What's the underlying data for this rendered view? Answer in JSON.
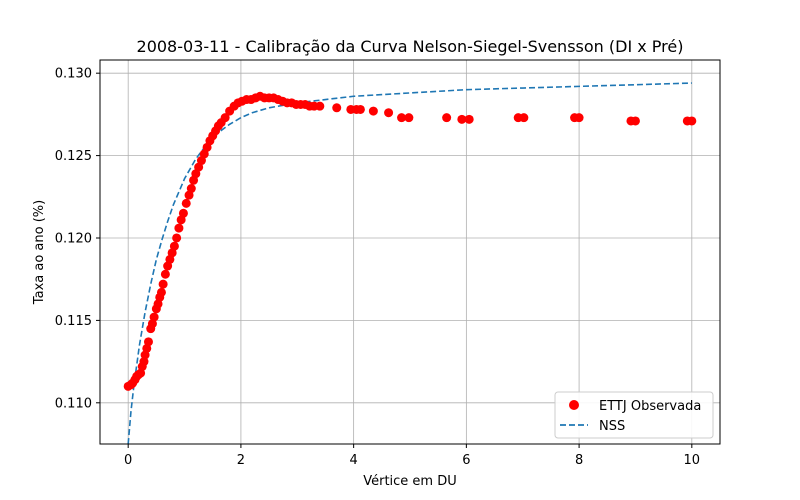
{
  "chart_data": {
    "type": "scatter",
    "title": "2008-03-11 - Calibração da Curva Nelson-Siegel-Svensson (DI x Pré)",
    "xlabel": "Vértice em DU",
    "ylabel": "Taxa ao ano (%)",
    "xlim": [
      -0.5,
      10.5
    ],
    "ylim": [
      0.1075,
      0.1308
    ],
    "x_ticks": [
      0,
      2,
      4,
      6,
      8,
      10
    ],
    "x_tick_labels": [
      "0",
      "2",
      "4",
      "6",
      "8",
      "10"
    ],
    "y_ticks": [
      0.11,
      0.115,
      0.12,
      0.125,
      0.13
    ],
    "y_tick_labels": [
      "0.110",
      "0.115",
      "0.120",
      "0.125",
      "0.130"
    ],
    "grid": true,
    "legend_position": "bottom-right",
    "series": [
      {
        "name": "ETTJ Observada",
        "kind": "scatter",
        "color": "#ff0000",
        "points": [
          [
            0.0,
            0.111
          ],
          [
            0.05,
            0.1111
          ],
          [
            0.08,
            0.1112
          ],
          [
            0.12,
            0.1114
          ],
          [
            0.15,
            0.1116
          ],
          [
            0.18,
            0.1117
          ],
          [
            0.22,
            0.1118
          ],
          [
            0.25,
            0.1122
          ],
          [
            0.28,
            0.1125
          ],
          [
            0.3,
            0.1129
          ],
          [
            0.33,
            0.1133
          ],
          [
            0.36,
            0.1137
          ],
          [
            0.4,
            0.1145
          ],
          [
            0.43,
            0.1148
          ],
          [
            0.46,
            0.1152
          ],
          [
            0.5,
            0.1157
          ],
          [
            0.53,
            0.116
          ],
          [
            0.56,
            0.1164
          ],
          [
            0.59,
            0.1167
          ],
          [
            0.62,
            0.1172
          ],
          [
            0.66,
            0.1178
          ],
          [
            0.7,
            0.1183
          ],
          [
            0.74,
            0.1187
          ],
          [
            0.78,
            0.1191
          ],
          [
            0.82,
            0.1195
          ],
          [
            0.86,
            0.12
          ],
          [
            0.9,
            0.1206
          ],
          [
            0.94,
            0.1211
          ],
          [
            0.98,
            0.1215
          ],
          [
            1.03,
            0.1221
          ],
          [
            1.08,
            0.1226
          ],
          [
            1.12,
            0.123
          ],
          [
            1.16,
            0.1235
          ],
          [
            1.2,
            0.1239
          ],
          [
            1.25,
            0.1243
          ],
          [
            1.3,
            0.1247
          ],
          [
            1.35,
            0.1251
          ],
          [
            1.4,
            0.1255
          ],
          [
            1.45,
            0.1259
          ],
          [
            1.5,
            0.1262
          ],
          [
            1.55,
            0.1265
          ],
          [
            1.6,
            0.1268
          ],
          [
            1.65,
            0.127
          ],
          [
            1.72,
            0.1273
          ],
          [
            1.8,
            0.1277
          ],
          [
            1.88,
            0.128
          ],
          [
            1.95,
            0.1282
          ],
          [
            2.02,
            0.1283
          ],
          [
            2.1,
            0.1284
          ],
          [
            2.18,
            0.1284
          ],
          [
            2.26,
            0.1285
          ],
          [
            2.34,
            0.1286
          ],
          [
            2.42,
            0.1285
          ],
          [
            2.5,
            0.1285
          ],
          [
            2.58,
            0.1285
          ],
          [
            2.66,
            0.1284
          ],
          [
            2.74,
            0.1283
          ],
          [
            2.82,
            0.1282
          ],
          [
            2.9,
            0.1282
          ],
          [
            2.98,
            0.1281
          ],
          [
            3.06,
            0.1281
          ],
          [
            3.14,
            0.1281
          ],
          [
            3.22,
            0.128
          ],
          [
            3.3,
            0.128
          ],
          [
            3.4,
            0.128
          ],
          [
            3.7,
            0.1279
          ],
          [
            3.95,
            0.1278
          ],
          [
            4.05,
            0.1278
          ],
          [
            4.12,
            0.1278
          ],
          [
            4.35,
            0.1277
          ],
          [
            4.62,
            0.1276
          ],
          [
            4.85,
            0.1273
          ],
          [
            4.98,
            0.1273
          ],
          [
            5.65,
            0.1273
          ],
          [
            5.92,
            0.1272
          ],
          [
            6.05,
            0.1272
          ],
          [
            6.92,
            0.1273
          ],
          [
            7.02,
            0.1273
          ],
          [
            7.92,
            0.1273
          ],
          [
            8.0,
            0.1273
          ],
          [
            8.92,
            0.1271
          ],
          [
            9.0,
            0.1271
          ],
          [
            9.92,
            0.1271
          ],
          [
            10.0,
            0.1271
          ]
        ]
      },
      {
        "name": "NSS",
        "kind": "line",
        "style": "dashed",
        "color": "#1f77b4",
        "points": [
          [
            0.0,
            0.1075
          ],
          [
            0.05,
            0.1095
          ],
          [
            0.1,
            0.111
          ],
          [
            0.2,
            0.1135
          ],
          [
            0.3,
            0.1155
          ],
          [
            0.4,
            0.1172
          ],
          [
            0.5,
            0.1187
          ],
          [
            0.6,
            0.1199
          ],
          [
            0.7,
            0.121
          ],
          [
            0.8,
            0.122
          ],
          [
            0.9,
            0.1228
          ],
          [
            1.0,
            0.1236
          ],
          [
            1.2,
            0.1248
          ],
          [
            1.4,
            0.1257
          ],
          [
            1.6,
            0.1264
          ],
          [
            1.8,
            0.1269
          ],
          [
            2.0,
            0.1273
          ],
          [
            2.2,
            0.1276
          ],
          [
            2.5,
            0.1279
          ],
          [
            3.0,
            0.1282
          ],
          [
            3.5,
            0.1284
          ],
          [
            4.0,
            0.1286
          ],
          [
            5.0,
            0.1288
          ],
          [
            6.0,
            0.129
          ],
          [
            7.0,
            0.1291
          ],
          [
            8.0,
            0.1292
          ],
          [
            9.0,
            0.1293
          ],
          [
            10.0,
            0.1294
          ]
        ]
      }
    ]
  }
}
